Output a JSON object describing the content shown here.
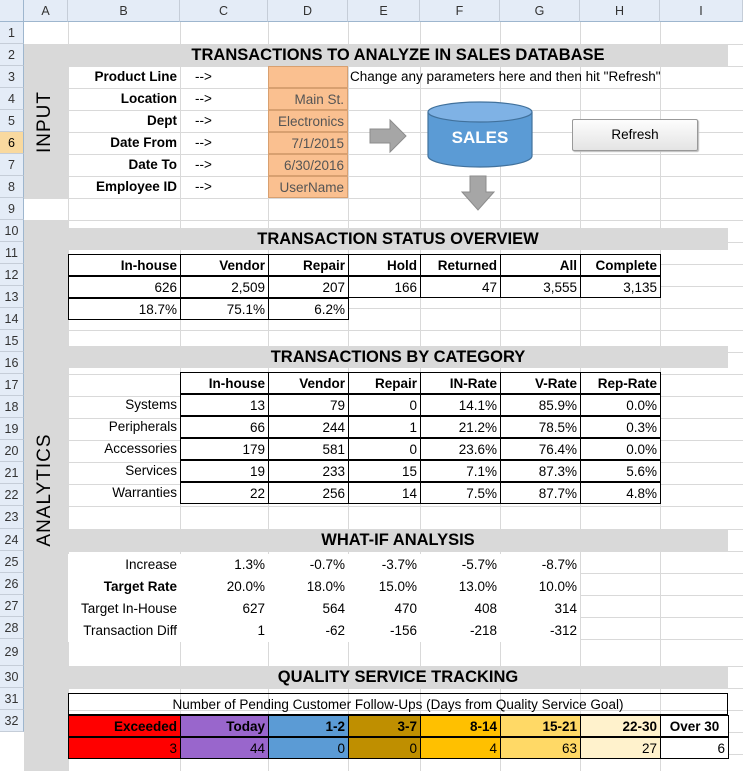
{
  "columns": [
    "A",
    "B",
    "C",
    "D",
    "E",
    "F",
    "G",
    "H",
    "I"
  ],
  "rows": [
    "1",
    "2",
    "3",
    "4",
    "5",
    "6",
    "7",
    "8",
    "9",
    "10",
    "11",
    "12",
    "13",
    "14",
    "15",
    "16",
    "17",
    "18",
    "19",
    "20",
    "21",
    "22",
    "23",
    "24",
    "25",
    "26",
    "27",
    "28",
    "29",
    "30",
    "31",
    "32"
  ],
  "side_labels": {
    "input": "INPUT",
    "analytics": "ANALYTICS"
  },
  "input": {
    "title": "TRANSACTIONS TO ANALYZE IN SALES DATABASE",
    "arrow": "-->",
    "note": "Change any parameters here and then hit \"Refresh\"",
    "params": [
      {
        "label": "Product Line",
        "value": ""
      },
      {
        "label": "Location",
        "value": "Main St."
      },
      {
        "label": "Dept",
        "value": "Electronics"
      },
      {
        "label": "Date From",
        "value": "7/1/2015"
      },
      {
        "label": "Date To",
        "value": "6/30/2016"
      },
      {
        "label": "Employee ID",
        "value": "UserName"
      }
    ],
    "db_label": "SALES",
    "refresh_label": "Refresh"
  },
  "status": {
    "title": "TRANSACTION STATUS OVERVIEW",
    "headers": [
      "In-house",
      "Vendor",
      "Repair",
      "Hold",
      "Returned",
      "All",
      "Complete"
    ],
    "values": [
      "626",
      "2,509",
      "207",
      "166",
      "47",
      "3,555",
      "3,135"
    ],
    "percents": [
      "18.7%",
      "75.1%",
      "6.2%"
    ]
  },
  "category": {
    "title": "TRANSACTIONS BY CATEGORY",
    "headers": [
      "In-house",
      "Vendor",
      "Repair",
      "IN-Rate",
      "V-Rate",
      "Rep-Rate"
    ],
    "rows": [
      {
        "name": "Systems",
        "values": [
          "13",
          "79",
          "0",
          "14.1%",
          "85.9%",
          "0.0%"
        ]
      },
      {
        "name": "Peripherals",
        "values": [
          "66",
          "244",
          "1",
          "21.2%",
          "78.5%",
          "0.3%"
        ]
      },
      {
        "name": "Accessories",
        "values": [
          "179",
          "581",
          "0",
          "23.6%",
          "76.4%",
          "0.0%"
        ]
      },
      {
        "name": "Services",
        "values": [
          "19",
          "233",
          "15",
          "7.1%",
          "87.3%",
          "5.6%"
        ]
      },
      {
        "name": "Warranties",
        "values": [
          "22",
          "256",
          "14",
          "7.5%",
          "87.7%",
          "4.8%"
        ]
      }
    ]
  },
  "whatif": {
    "title": "WHAT-IF ANALYSIS",
    "rows": [
      {
        "label": "Increase",
        "values": [
          "1.3%",
          "-0.7%",
          "-3.7%",
          "-5.7%",
          "-8.7%"
        ]
      },
      {
        "label": "Target Rate",
        "values": [
          "20.0%",
          "18.0%",
          "15.0%",
          "13.0%",
          "10.0%"
        ]
      },
      {
        "label": "Target In-House",
        "values": [
          "627",
          "564",
          "470",
          "408",
          "314"
        ]
      },
      {
        "label": "Transaction Diff",
        "values": [
          "1",
          "-62",
          "-156",
          "-218",
          "-312"
        ]
      }
    ]
  },
  "quality": {
    "title": "QUALITY SERVICE TRACKING",
    "subtitle": "Number of Pending Customer Follow-Ups (Days from Quality Service Goal)",
    "buckets": [
      {
        "label": "Exceeded",
        "value": "3",
        "color": "#ff0000"
      },
      {
        "label": "Today",
        "value": "44",
        "color": "#9966cc"
      },
      {
        "label": "1-2",
        "value": "0",
        "color": "#5b9bd5"
      },
      {
        "label": "3-7",
        "value": "0",
        "color": "#bf8f00"
      },
      {
        "label": "8-14",
        "value": "4",
        "color": "#ffc000"
      },
      {
        "label": "15-21",
        "value": "63",
        "color": "#ffd966"
      },
      {
        "label": "22-30",
        "value": "27",
        "color": "#fff2cc"
      },
      {
        "label": "Over 30",
        "value": "6",
        "color": "#ffffff"
      }
    ]
  }
}
